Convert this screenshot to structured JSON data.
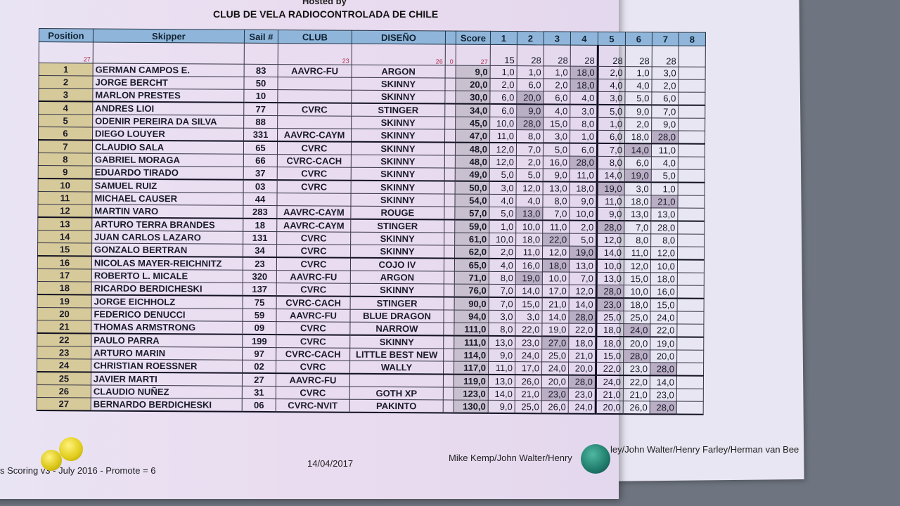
{
  "header": {
    "hosted": "Hosted by",
    "club": "CLUB DE VELA RADIOCONTROLADA DE CHILE"
  },
  "columns": [
    "Position",
    "Skipper",
    "Sail #",
    "CLUB",
    "DISEÑO",
    "",
    "Score",
    "1",
    "2",
    "3",
    "4",
    "5",
    "6",
    "7",
    "8"
  ],
  "subheader": {
    "position_count": "27",
    "club_count": "23",
    "diseno_count": "26",
    "gap_count": "0",
    "score_count": "27",
    "race_counts": [
      "15",
      "28",
      "28",
      "28",
      "28",
      "28",
      "28",
      ""
    ]
  },
  "rows": [
    {
      "pos": "1",
      "skipper": "GERMAN CAMPOS E.",
      "sail": "83",
      "club": "AAVRC-FU",
      "diseno": "ARGON",
      "score": "9,0",
      "races": [
        "1,0",
        "1,0",
        "1,0",
        "18,0",
        "2,0",
        "1,0",
        "3,0",
        ""
      ],
      "discard": 4
    },
    {
      "pos": "2",
      "skipper": "JORGE BERCHT",
      "sail": "50",
      "club": "",
      "diseno": "SKINNY",
      "score": "20,0",
      "races": [
        "2,0",
        "6,0",
        "2,0",
        "18,0",
        "4,0",
        "4,0",
        "2,0",
        ""
      ],
      "discard": 4
    },
    {
      "pos": "3",
      "skipper": "MARLON PRESTES",
      "sail": "10",
      "club": "",
      "diseno": "SKINNY",
      "score": "30,0",
      "races": [
        "6,0",
        "20,0",
        "6,0",
        "4,0",
        "3,0",
        "5,0",
        "6,0",
        ""
      ],
      "discard": 2
    },
    {
      "pos": "4",
      "skipper": "ANDRES LIOI",
      "sail": "77",
      "club": "CVRC",
      "diseno": "STINGER",
      "score": "34,0",
      "races": [
        "6,0",
        "9,0",
        "4,0",
        "3,0",
        "5,0",
        "9,0",
        "7,0",
        ""
      ],
      "discard": 2
    },
    {
      "pos": "5",
      "skipper": "ODENIR PEREIRA DA SILVA",
      "sail": "88",
      "club": "",
      "diseno": "SKINNY",
      "score": "45,0",
      "races": [
        "10,0",
        "28,0",
        "15,0",
        "8,0",
        "1,0",
        "2,0",
        "9,0",
        ""
      ],
      "discard": 2
    },
    {
      "pos": "6",
      "skipper": "DIEGO LOUYER",
      "sail": "331",
      "club": "AAVRC-CAYM",
      "diseno": "SKINNY",
      "score": "47,0",
      "races": [
        "11,0",
        "8,0",
        "3,0",
        "1,0",
        "6,0",
        "18,0",
        "28,0",
        ""
      ],
      "discard": 7
    },
    {
      "pos": "7",
      "skipper": "CLAUDIO SALA",
      "sail": "65",
      "club": "CVRC",
      "diseno": "SKINNY",
      "score": "48,0",
      "races": [
        "12,0",
        "7,0",
        "5,0",
        "6,0",
        "7,0",
        "14,0",
        "11,0",
        ""
      ],
      "discard": 6
    },
    {
      "pos": "8",
      "skipper": "GABRIEL MORAGA",
      "sail": "66",
      "club": "CVRC-CACH",
      "diseno": "SKINNY",
      "score": "48,0",
      "races": [
        "12,0",
        "2,0",
        "16,0",
        "28,0",
        "8,0",
        "6,0",
        "4,0",
        ""
      ],
      "discard": 4
    },
    {
      "pos": "9",
      "skipper": "EDUARDO TIRADO",
      "sail": "37",
      "club": "CVRC",
      "diseno": "SKINNY",
      "score": "49,0",
      "races": [
        "5,0",
        "5,0",
        "9,0",
        "11,0",
        "14,0",
        "19,0",
        "5,0",
        ""
      ],
      "discard": 6
    },
    {
      "pos": "10",
      "skipper": "SAMUEL RUIZ",
      "sail": "03",
      "club": "CVRC",
      "diseno": "SKINNY",
      "score": "50,0",
      "races": [
        "3,0",
        "12,0",
        "13,0",
        "18,0",
        "19,0",
        "3,0",
        "1,0",
        ""
      ],
      "discard": 5
    },
    {
      "pos": "11",
      "skipper": "MICHAEL CAUSER",
      "sail": "44",
      "club": "",
      "diseno": "SKINNY",
      "score": "54,0",
      "races": [
        "4,0",
        "4,0",
        "8,0",
        "9,0",
        "11,0",
        "18,0",
        "21,0",
        ""
      ],
      "discard": 7
    },
    {
      "pos": "12",
      "skipper": "MARTIN VARO",
      "sail": "283",
      "club": "AAVRC-CAYM",
      "diseno": "ROUGE",
      "score": "57,0",
      "races": [
        "5,0",
        "13,0",
        "7,0",
        "10,0",
        "9,0",
        "13,0",
        "13,0",
        ""
      ],
      "discard": 2
    },
    {
      "pos": "13",
      "skipper": "ARTURO TERRA BRANDES",
      "sail": "18",
      "club": "AAVRC-CAYM",
      "diseno": "STINGER",
      "score": "59,0",
      "races": [
        "1,0",
        "10,0",
        "11,0",
        "2,0",
        "28,0",
        "7,0",
        "28,0",
        ""
      ],
      "discard": 5
    },
    {
      "pos": "14",
      "skipper": "JUAN CARLOS LAZARO",
      "sail": "131",
      "club": "CVRC",
      "diseno": "SKINNY",
      "score": "61,0",
      "races": [
        "10,0",
        "18,0",
        "22,0",
        "5,0",
        "12,0",
        "8,0",
        "8,0",
        ""
      ],
      "discard": 3
    },
    {
      "pos": "15",
      "skipper": "GONZALO BERTRAN",
      "sail": "34",
      "club": "CVRC",
      "diseno": "SKINNY",
      "score": "62,0",
      "races": [
        "2,0",
        "11,0",
        "12,0",
        "19,0",
        "14,0",
        "11,0",
        "12,0",
        ""
      ],
      "discard": 4
    },
    {
      "pos": "16",
      "skipper": "NICOLAS MAYER-REICHNITZ",
      "sail": "23",
      "club": "CVRC",
      "diseno": "COJO IV",
      "score": "65,0",
      "races": [
        "4,0",
        "16,0",
        "18,0",
        "13,0",
        "10,0",
        "12,0",
        "10,0",
        ""
      ],
      "discard": 3
    },
    {
      "pos": "17",
      "skipper": "ROBERTO L. MICALE",
      "sail": "320",
      "club": "AAVRC-FU",
      "diseno": "ARGON",
      "score": "71,0",
      "races": [
        "8,0",
        "19,0",
        "10,0",
        "7,0",
        "13,0",
        "15,0",
        "18,0",
        ""
      ],
      "discard": 2
    },
    {
      "pos": "18",
      "skipper": "RICARDO BERDICHESKI",
      "sail": "137",
      "club": "CVRC",
      "diseno": "SKINNY",
      "score": "76,0",
      "races": [
        "7,0",
        "14,0",
        "17,0",
        "12,0",
        "28,0",
        "10,0",
        "16,0",
        ""
      ],
      "discard": 5
    },
    {
      "pos": "19",
      "skipper": "JORGE EICHHOLZ",
      "sail": "75",
      "club": "CVRC-CACH",
      "diseno": "STINGER",
      "score": "90,0",
      "races": [
        "7,0",
        "15,0",
        "21,0",
        "14,0",
        "23,0",
        "18,0",
        "15,0",
        ""
      ],
      "discard": 5
    },
    {
      "pos": "20",
      "skipper": "FEDERICO DENUCCI",
      "sail": "59",
      "club": "AAVRC-FU",
      "diseno": "BLUE DRAGON",
      "score": "94,0",
      "races": [
        "3,0",
        "3,0",
        "14,0",
        "28,0",
        "25,0",
        "25,0",
        "24,0",
        ""
      ],
      "discard": 4
    },
    {
      "pos": "21",
      "skipper": "THOMAS ARMSTRONG",
      "sail": "09",
      "club": "CVRC",
      "diseno": "NARROW",
      "score": "111,0",
      "races": [
        "8,0",
        "22,0",
        "19,0",
        "22,0",
        "18,0",
        "24,0",
        "22,0",
        ""
      ],
      "discard": 6
    },
    {
      "pos": "22",
      "skipper": "PAULO PARRA",
      "sail": "199",
      "club": "CVRC",
      "diseno": "SKINNY",
      "score": "111,0",
      "races": [
        "13,0",
        "23,0",
        "27,0",
        "18,0",
        "18,0",
        "20,0",
        "19,0",
        ""
      ],
      "discard": 3
    },
    {
      "pos": "23",
      "skipper": "ARTURO MARIN",
      "sail": "97",
      "club": "CVRC-CACH",
      "diseno": "LITTLE BEST NEW",
      "score": "114,0",
      "races": [
        "9,0",
        "24,0",
        "25,0",
        "21,0",
        "15,0",
        "28,0",
        "20,0",
        ""
      ],
      "discard": 6
    },
    {
      "pos": "24",
      "skipper": "CHRISTIAN ROESSNER",
      "sail": "02",
      "club": "CVRC",
      "diseno": "WALLY",
      "score": "117,0",
      "races": [
        "11,0",
        "17,0",
        "24,0",
        "20,0",
        "22,0",
        "23,0",
        "28,0",
        ""
      ],
      "discard": 7
    },
    {
      "pos": "25",
      "skipper": "JAVIER MARTI",
      "sail": "27",
      "club": "AAVRC-FU",
      "diseno": "",
      "score": "119,0",
      "races": [
        "13,0",
        "26,0",
        "20,0",
        "28,0",
        "24,0",
        "22,0",
        "14,0",
        ""
      ],
      "discard": 4
    },
    {
      "pos": "26",
      "skipper": "CLAUDIO NUÑEZ",
      "sail": "31",
      "club": "CVRC",
      "diseno": "GOTH XP",
      "score": "123,0",
      "races": [
        "14,0",
        "21,0",
        "23,0",
        "23,0",
        "21,0",
        "21,0",
        "23,0",
        ""
      ],
      "discard": 3
    },
    {
      "pos": "27",
      "skipper": "BERNARDO BERDICHESKI",
      "sail": "06",
      "club": "CVRC-NVIT",
      "diseno": "PAKINTO",
      "score": "130,0",
      "races": [
        "9,0",
        "25,0",
        "26,0",
        "24,0",
        "20,0",
        "26,0",
        "28,0",
        ""
      ],
      "discard": 7
    }
  ],
  "footer": {
    "scoring": "s Scoring v3 - July 2016 - Promote = 6",
    "date": "14/04/2017",
    "credits_front": "Mike Kemp/John Walter/Henry",
    "credits_back": "ley/John Walter/Henry Farley/Herman van Bee"
  },
  "colors": {
    "header_bg": "#8fb6da",
    "position_bg": "#d6c99a",
    "discard_bg": "#b9aec4",
    "pin_yellow": "#e6d21e",
    "pin_green": "#1f7a6a"
  }
}
